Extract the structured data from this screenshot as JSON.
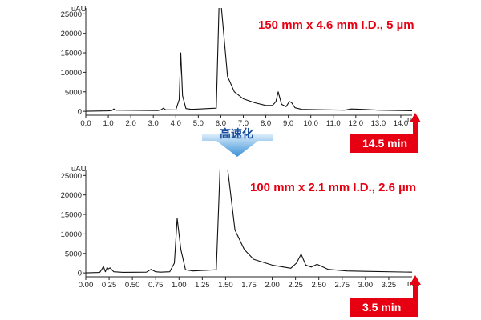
{
  "down_arrow_label": "高速化",
  "chart_data": [
    {
      "type": "line",
      "title": "150 mm x 4.6 mm I.D., 5 µm",
      "ylabel": "uAU",
      "xlabel": "min",
      "xlim": [
        0,
        14.5
      ],
      "ylim": [
        -1000,
        26500
      ],
      "xticks": [
        "0.0",
        "1.0",
        "2.0",
        "3.0",
        "4.0",
        "5.0",
        "6.0",
        "7.0",
        "8.0",
        "9.0",
        "10.0",
        "11.0",
        "12.0",
        "13.0",
        "14.0"
      ],
      "yticks": [
        "0",
        "5000",
        "10000",
        "15000",
        "20000",
        "25000"
      ],
      "runtime_label": "14.5 min",
      "series": [
        {
          "values_x": [
            0.0,
            1.0,
            1.15,
            1.25,
            1.35,
            3.2,
            3.35,
            3.45,
            3.55,
            4.0,
            4.15,
            4.22,
            4.3,
            4.45,
            4.7,
            5.8,
            5.92,
            5.98,
            6.02,
            6.3,
            6.6,
            7.0,
            7.5,
            8.0,
            8.3,
            8.45,
            8.55,
            8.7,
            8.9,
            9.05,
            9.15,
            9.3,
            9.6,
            11.5,
            11.8,
            12.3,
            13.0,
            14.5
          ],
          "values_y": [
            0,
            100,
            200,
            600,
            300,
            200,
            400,
            800,
            400,
            350,
            3000,
            15000,
            4000,
            700,
            500,
            800,
            27000,
            27000,
            27000,
            9000,
            5000,
            3200,
            2200,
            1500,
            1500,
            2500,
            5000,
            1800,
            1200,
            2500,
            2200,
            900,
            500,
            300,
            600,
            500,
            300,
            150
          ]
        }
      ]
    },
    {
      "type": "line",
      "title": "100 mm x 2.1 mm I.D., 2.6 µm",
      "ylabel": "uAU",
      "xlabel": "min",
      "xlim": [
        0,
        3.5
      ],
      "ylim": [
        -1000,
        26500
      ],
      "xticks": [
        "0.00",
        "0.25",
        "0.50",
        "0.75",
        "1.00",
        "1.25",
        "1.50",
        "1.75",
        "2.00",
        "2.25",
        "2.50",
        "2.75",
        "3.00",
        "3.25"
      ],
      "yticks": [
        "0",
        "5000",
        "10000",
        "15000",
        "20000",
        "25000"
      ],
      "runtime_label": "3.5 min",
      "series": [
        {
          "values_x": [
            0.0,
            0.15,
            0.19,
            0.21,
            0.23,
            0.24,
            0.26,
            0.3,
            0.4,
            0.65,
            0.7,
            0.75,
            0.8,
            0.9,
            0.95,
            0.98,
            1.02,
            1.07,
            1.15,
            1.4,
            1.44,
            1.47,
            1.52,
            1.6,
            1.7,
            1.8,
            2.0,
            2.2,
            2.26,
            2.31,
            2.36,
            2.42,
            2.48,
            2.52,
            2.6,
            2.8,
            3.0,
            3.5
          ],
          "values_y": [
            0,
            100,
            1600,
            300,
            1400,
            1000,
            1300,
            300,
            150,
            200,
            900,
            300,
            200,
            300,
            2500,
            14000,
            6000,
            800,
            500,
            800,
            27000,
            27000,
            27000,
            11000,
            6000,
            3500,
            2000,
            1200,
            2500,
            4800,
            2000,
            1500,
            2200,
            1800,
            900,
            500,
            400,
            200
          ]
        }
      ]
    }
  ]
}
